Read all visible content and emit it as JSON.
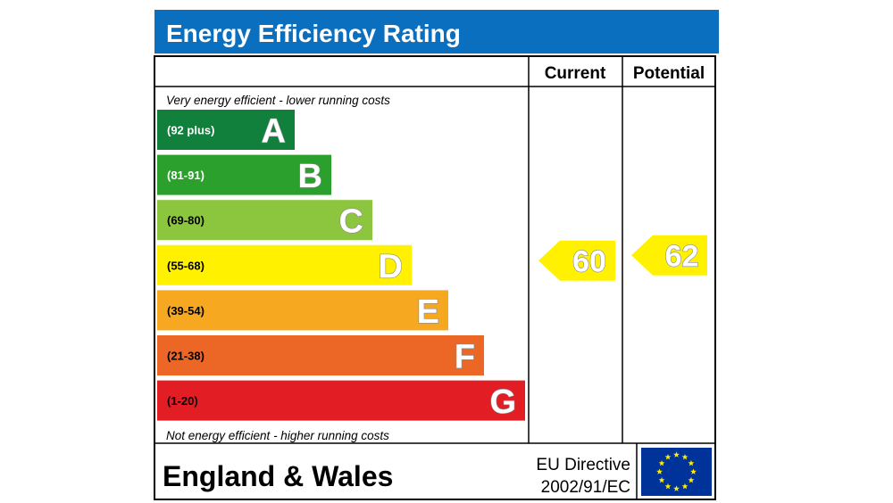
{
  "title": "Energy Efficiency Rating",
  "columns": {
    "current": "Current",
    "potential": "Potential"
  },
  "top_note": "Very energy efficient - lower running costs",
  "bottom_note": "Not energy efficient - higher running costs",
  "footer": {
    "region": "England & Wales",
    "directive_line1": "EU Directive",
    "directive_line2": "2002/91/EC"
  },
  "colors": {
    "header": "#0a6fbf",
    "A": "#10803c",
    "B": "#2ca02c",
    "C": "#8cc63e",
    "D": "#fff100",
    "E": "#f6a821",
    "F": "#ec6726",
    "G": "#e31d24",
    "rating_arrow": "#fff100",
    "eu_flag": "#003399",
    "eu_stars": "#ffed00"
  },
  "chart_data": {
    "type": "bar",
    "categories": [
      "A",
      "B",
      "C",
      "D",
      "E",
      "F",
      "G"
    ],
    "ranges": [
      "(92 plus)",
      "(81-91)",
      "(69-80)",
      "(55-68)",
      "(39-54)",
      "(21-38)",
      "(1-20)"
    ],
    "current": 60,
    "current_band": "D",
    "potential": 62,
    "potential_band": "D"
  }
}
